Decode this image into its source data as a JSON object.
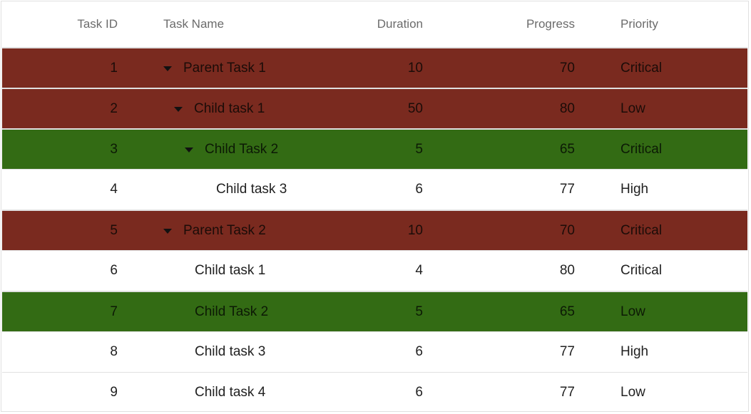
{
  "columns": {
    "id": "Task ID",
    "name": "Task Name",
    "duration": "Duration",
    "progress": "Progress",
    "priority": "Priority"
  },
  "colors": {
    "critical_row": "#7a2a1f",
    "highlight_row": "#336b14",
    "border": "#e0e0e0"
  },
  "rows": [
    {
      "id": "1",
      "name": "Parent Task 1",
      "duration": "10",
      "progress": "70",
      "priority": "Critical",
      "level": 0,
      "expanded": true,
      "style": "red"
    },
    {
      "id": "2",
      "name": "Child task 1",
      "duration": "50",
      "progress": "80",
      "priority": "Low",
      "level": 1,
      "expanded": true,
      "style": "red"
    },
    {
      "id": "3",
      "name": "Child Task 2",
      "duration": "5",
      "progress": "65",
      "priority": "Critical",
      "level": 2,
      "expanded": true,
      "style": "green"
    },
    {
      "id": "4",
      "name": "Child task 3",
      "duration": "6",
      "progress": "77",
      "priority": "High",
      "level": 3,
      "expanded": null,
      "style": "white"
    },
    {
      "id": "5",
      "name": "Parent Task 2",
      "duration": "10",
      "progress": "70",
      "priority": "Critical",
      "level": 0,
      "expanded": true,
      "style": "red"
    },
    {
      "id": "6",
      "name": "Child task 1",
      "duration": "4",
      "progress": "80",
      "priority": "Critical",
      "level": 1,
      "expanded": null,
      "style": "white"
    },
    {
      "id": "7",
      "name": "Child Task 2",
      "duration": "5",
      "progress": "65",
      "priority": "Low",
      "level": 1,
      "expanded": null,
      "style": "green"
    },
    {
      "id": "8",
      "name": "Child task 3",
      "duration": "6",
      "progress": "77",
      "priority": "High",
      "level": 1,
      "expanded": null,
      "style": "white"
    },
    {
      "id": "9",
      "name": "Child task 4",
      "duration": "6",
      "progress": "77",
      "priority": "Low",
      "level": 1,
      "expanded": null,
      "style": "white"
    }
  ]
}
